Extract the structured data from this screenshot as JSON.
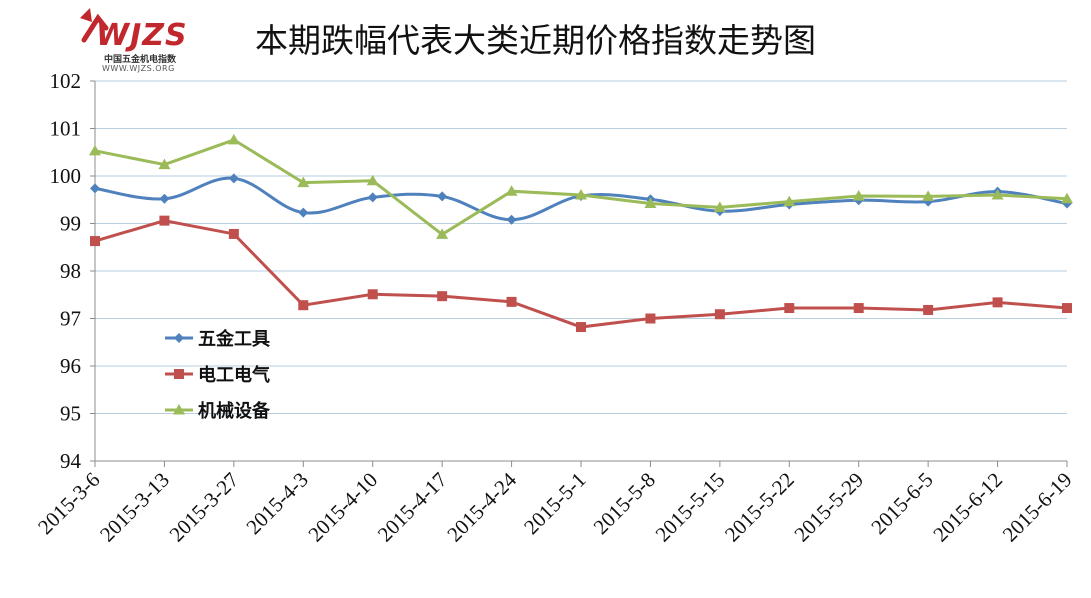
{
  "logo": {
    "text": "WJZS",
    "line1": "中国五金机电指数",
    "line2": "WWW.WJZS.ORG"
  },
  "chart_data": {
    "type": "line",
    "title": "本期跌幅代表大类近期价格指数走势图",
    "xlabel": "",
    "ylabel": "",
    "categories": [
      "2015-3-6",
      "2015-3-13",
      "2015-3-27",
      "2015-4-3",
      "2015-4-10",
      "2015-4-17",
      "2015-4-24",
      "2015-5-1",
      "2015-5-8",
      "2015-5-15",
      "2015-5-22",
      "2015-5-29",
      "2015-6-5",
      "2015-6-12",
      "2015-6-19"
    ],
    "ylim": [
      94,
      102
    ],
    "yticks": [
      94,
      95,
      96,
      97,
      98,
      99,
      100,
      101,
      102
    ],
    "grid": "horizontal",
    "legend_position": "left-middle",
    "series": [
      {
        "name": "五金工具",
        "color": "#4f81bd",
        "marker": "diamond",
        "smooth": true,
        "values": [
          99.74,
          99.52,
          99.95,
          99.23,
          99.55,
          99.57,
          99.08,
          99.58,
          99.51,
          99.26,
          99.4,
          99.49,
          99.46,
          99.67,
          99.42
        ]
      },
      {
        "name": "电工电气",
        "color": "#c0504d",
        "marker": "square",
        "smooth": false,
        "values": [
          98.63,
          99.06,
          98.78,
          97.28,
          97.51,
          97.47,
          97.35,
          96.82,
          97.0,
          97.09,
          97.22,
          97.22,
          97.18,
          97.34,
          97.22
        ]
      },
      {
        "name": "机械设备",
        "color": "#9bbb59",
        "marker": "triangle",
        "smooth": false,
        "values": [
          100.53,
          100.24,
          100.76,
          99.86,
          99.9,
          98.77,
          99.68,
          99.6,
          99.42,
          99.34,
          99.46,
          99.58,
          99.57,
          99.6,
          99.52
        ]
      }
    ]
  }
}
